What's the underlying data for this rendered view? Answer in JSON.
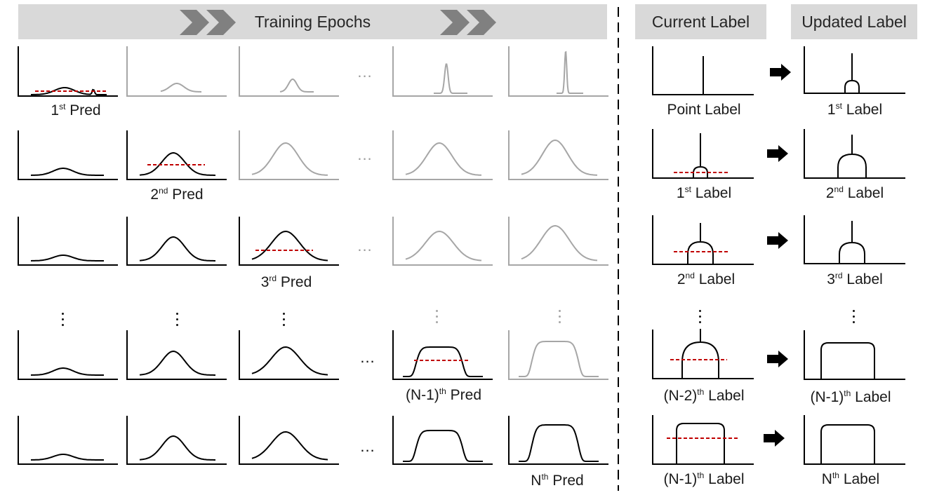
{
  "header": {
    "training_title": "Training Epochs",
    "current_title": "Current Label",
    "updated_title": "Updated Label"
  },
  "pred_labels": [
    {
      "pre": "1",
      "sup": "st",
      "post": " Pred"
    },
    {
      "pre": "2",
      "sup": "nd",
      "post": " Pred"
    },
    {
      "pre": "3",
      "sup": "rd",
      "post": " Pred"
    },
    {
      "pre": "(N-1)",
      "sup": "th",
      "post": " Pred"
    },
    {
      "pre": "N",
      "sup": "th",
      "post": " Pred"
    }
  ],
  "current_labels": [
    {
      "pre": "Point Label",
      "sup": "",
      "post": ""
    },
    {
      "pre": "1",
      "sup": "st",
      "post": " Label"
    },
    {
      "pre": "2",
      "sup": "nd",
      "post": " Label"
    },
    {
      "pre": "(N-2)",
      "sup": "th",
      "post": " Label"
    },
    {
      "pre": "(N-1)",
      "sup": "th",
      "post": " Label"
    }
  ],
  "updated_labels": [
    {
      "pre": "1",
      "sup": "st",
      "post": " Label"
    },
    {
      "pre": "2",
      "sup": "nd",
      "post": " Label"
    },
    {
      "pre": "3",
      "sup": "rd",
      "post": " Label"
    },
    {
      "pre": "(N-1)",
      "sup": "th",
      "post": " Label"
    },
    {
      "pre": "N",
      "sup": "th",
      "post": " Label"
    }
  ],
  "ellipsis": "...",
  "colors": {
    "banner": "#d9d9d9",
    "arrow": "#808080",
    "active": "#000000",
    "faded": "#a6a6a6",
    "threshold": "#c00000",
    "text": "#262626"
  }
}
